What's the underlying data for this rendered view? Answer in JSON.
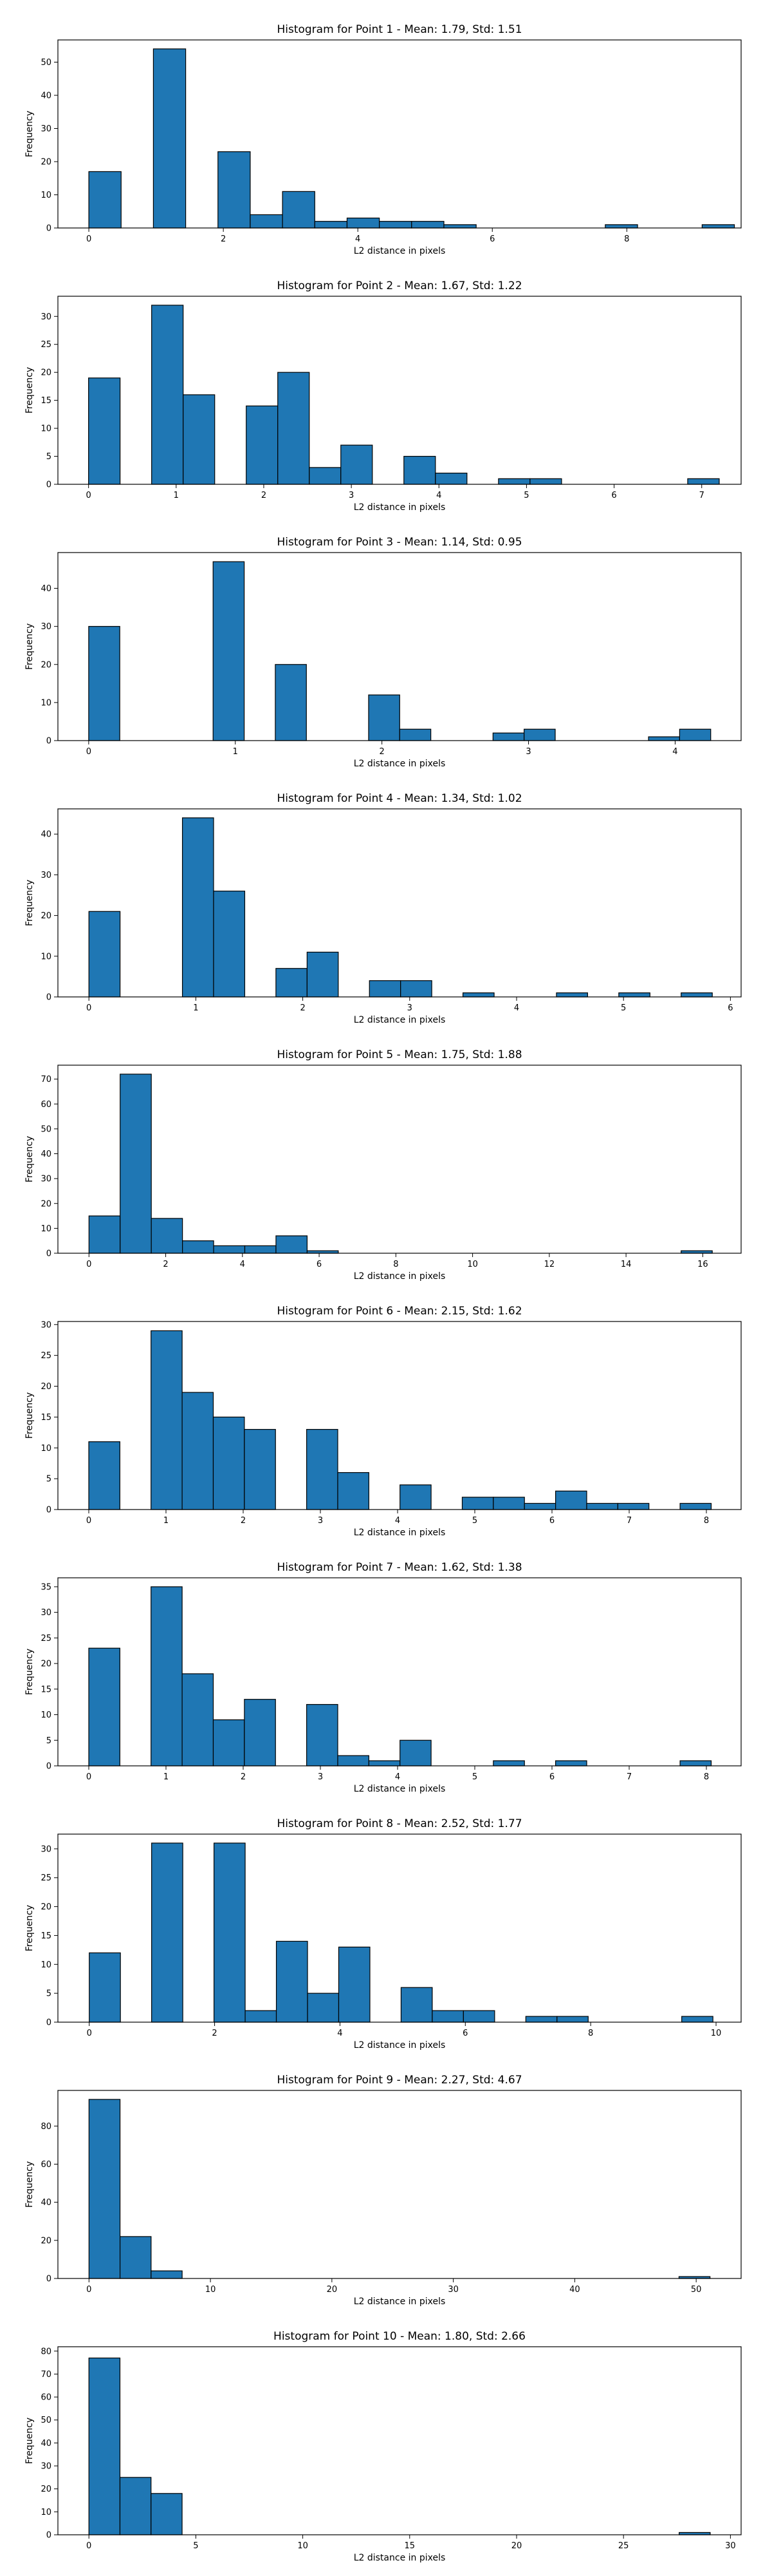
{
  "chart_data": [
    {
      "type": "bar",
      "title": "Histogram for Point 1 - Mean: 1.79, Std: 1.51",
      "xlabel": "L2 distance in pixels",
      "ylabel": "Frequency",
      "xlim": [
        -0.46,
        9.7
      ],
      "ylim": [
        0,
        56.7
      ],
      "xticks": [
        0,
        2,
        4,
        6,
        8
      ],
      "yticks": [
        0,
        10,
        20,
        30,
        40,
        50
      ],
      "bin_edges": [
        0,
        0.48,
        0.96,
        1.44,
        1.92,
        2.4,
        2.88,
        3.36,
        3.84,
        4.32,
        4.8,
        5.28,
        5.76,
        6.24,
        6.72,
        7.2,
        7.68,
        8.16,
        8.64,
        9.12,
        9.6
      ],
      "values": [
        17,
        0,
        54,
        0,
        23,
        4,
        11,
        2,
        3,
        2,
        2,
        1,
        0,
        0,
        0,
        0,
        1,
        0,
        0,
        1
      ]
    },
    {
      "type": "bar",
      "title": "Histogram for Point 2 - Mean: 1.67, Std: 1.22",
      "xlabel": "L2 distance in pixels",
      "ylabel": "Frequency",
      "xlim": [
        -0.35,
        7.45
      ],
      "ylim": [
        0,
        33.6
      ],
      "xticks": [
        0,
        1,
        2,
        3,
        4,
        5,
        6,
        7
      ],
      "yticks": [
        0,
        5,
        10,
        15,
        20,
        25,
        30
      ],
      "bin_edges": [
        0,
        0.36,
        0.72,
        1.08,
        1.44,
        1.8,
        2.16,
        2.52,
        2.88,
        3.24,
        3.6,
        3.96,
        4.32,
        4.68,
        5.04,
        5.4,
        5.76,
        6.12,
        6.48,
        6.84,
        7.2
      ],
      "values": [
        19,
        0,
        32,
        16,
        0,
        14,
        20,
        3,
        7,
        0,
        5,
        2,
        0,
        1,
        1,
        0,
        0,
        0,
        0,
        1
      ]
    },
    {
      "type": "bar",
      "title": "Histogram for Point 3 - Mean: 1.14, Std: 0.95",
      "xlabel": "L2 distance in pixels",
      "ylabel": "Frequency",
      "xlim": [
        -0.21,
        4.45
      ],
      "ylim": [
        0,
        49.4
      ],
      "xticks": [
        0,
        1,
        2,
        3,
        4
      ],
      "yticks": [
        0,
        10,
        20,
        30,
        40
      ],
      "bin_edges": [
        0,
        0.2121,
        0.4243,
        0.6364,
        0.8485,
        1.0607,
        1.2728,
        1.4849,
        1.6971,
        1.9092,
        2.1213,
        2.3335,
        2.5456,
        2.7577,
        2.9698,
        3.182,
        3.3941,
        3.6062,
        3.8184,
        4.0305,
        4.2426
      ],
      "values": [
        30,
        0,
        0,
        0,
        47,
        0,
        20,
        0,
        0,
        12,
        3,
        0,
        0,
        2,
        3,
        0,
        0,
        0,
        1,
        3
      ]
    },
    {
      "type": "bar",
      "title": "Histogram for Point 4 - Mean: 1.34, Std: 1.02",
      "xlabel": "L2 distance in pixels",
      "ylabel": "Frequency",
      "xlim": [
        -0.29,
        6.1
      ],
      "ylim": [
        0,
        46.2
      ],
      "xticks": [
        0,
        1,
        2,
        3,
        4,
        5,
        6
      ],
      "yticks": [
        0,
        10,
        20,
        30,
        40
      ],
      "bin_edges": [
        0,
        0.2915,
        0.583,
        0.8746,
        1.1661,
        1.4576,
        1.7491,
        2.0406,
        2.3322,
        2.6237,
        2.9152,
        3.2067,
        3.4982,
        3.7898,
        4.0813,
        4.3728,
        4.6643,
        4.9558,
        5.2474,
        5.5389,
        5.8304
      ],
      "values": [
        21,
        0,
        0,
        44,
        26,
        0,
        7,
        11,
        0,
        4,
        4,
        0,
        1,
        0,
        0,
        1,
        0,
        1,
        0,
        1
      ]
    },
    {
      "type": "bar",
      "title": "Histogram for Point 5 - Mean: 1.75, Std: 1.88",
      "xlabel": "L2 distance in pixels",
      "ylabel": "Frequency",
      "xlim": [
        -0.81,
        17.0
      ],
      "ylim": [
        0,
        75.6
      ],
      "xticks": [
        0,
        2,
        4,
        6,
        8,
        10,
        12,
        14,
        16
      ],
      "yticks": [
        0,
        10,
        20,
        30,
        40,
        50,
        60,
        70
      ],
      "bin_edges": [
        0,
        0.8124,
        1.6248,
        2.4372,
        3.2496,
        4.062,
        4.8744,
        5.6868,
        6.4992,
        7.3116,
        8.124,
        8.9364,
        9.7488,
        10.5612,
        11.3736,
        12.186,
        12.9984,
        13.8108,
        14.6232,
        15.4356,
        16.248
      ],
      "values": [
        15,
        72,
        14,
        5,
        3,
        3,
        7,
        1,
        0,
        0,
        0,
        0,
        0,
        0,
        0,
        0,
        0,
        0,
        0,
        1
      ]
    },
    {
      "type": "bar",
      "title": "Histogram for Point 6 - Mean: 2.15, Std: 1.62",
      "xlabel": "L2 distance in pixels",
      "ylabel": "Frequency",
      "xlim": [
        -0.4,
        8.45
      ],
      "ylim": [
        0,
        30.5
      ],
      "xticks": [
        0,
        1,
        2,
        3,
        4,
        5,
        6,
        7,
        8
      ],
      "yticks": [
        0,
        5,
        10,
        15,
        20,
        25,
        30
      ],
      "bin_edges": [
        0,
        0.4031,
        0.8062,
        1.2093,
        1.6125,
        2.0156,
        2.4187,
        2.8218,
        3.2249,
        3.628,
        4.0311,
        4.4342,
        4.8374,
        5.2405,
        5.6436,
        6.0467,
        6.4498,
        6.8529,
        7.256,
        7.6592,
        8.0623
      ],
      "values": [
        11,
        0,
        29,
        19,
        15,
        13,
        0,
        13,
        6,
        0,
        4,
        0,
        2,
        2,
        1,
        3,
        1,
        1,
        0,
        1
      ]
    },
    {
      "type": "bar",
      "title": "Histogram for Point 7 - Mean: 1.62, Std: 1.38",
      "xlabel": "L2 distance in pixels",
      "ylabel": "Frequency",
      "xlim": [
        -0.4,
        8.45
      ],
      "ylim": [
        0,
        36.75
      ],
      "xticks": [
        0,
        1,
        2,
        3,
        4,
        5,
        6,
        7,
        8
      ],
      "yticks": [
        0,
        5,
        10,
        15,
        20,
        25,
        30,
        35
      ],
      "bin_edges": [
        0,
        0.4031,
        0.8062,
        1.2093,
        1.6125,
        2.0156,
        2.4187,
        2.8218,
        3.2249,
        3.628,
        4.0311,
        4.4342,
        4.8374,
        5.2405,
        5.6436,
        6.0467,
        6.4498,
        6.8529,
        7.256,
        7.6592,
        8.0623
      ],
      "values": [
        23,
        0,
        35,
        18,
        9,
        13,
        0,
        12,
        2,
        1,
        5,
        0,
        0,
        1,
        0,
        1,
        0,
        0,
        0,
        1
      ]
    },
    {
      "type": "bar",
      "title": "Histogram for Point 8 - Mean: 2.52, Std: 1.77",
      "xlabel": "L2 distance in pixels",
      "ylabel": "Frequency",
      "xlim": [
        -0.5,
        10.4
      ],
      "ylim": [
        0,
        32.55
      ],
      "xticks": [
        0,
        2,
        4,
        6,
        8,
        10
      ],
      "yticks": [
        0,
        5,
        10,
        15,
        20,
        25,
        30
      ],
      "bin_edges": [
        0,
        0.4975,
        0.995,
        1.4925,
        1.99,
        2.4875,
        2.985,
        3.4825,
        3.98,
        4.4775,
        4.975,
        5.4725,
        5.97,
        6.4675,
        6.965,
        7.4625,
        7.96,
        8.4575,
        8.955,
        9.4525,
        9.95
      ],
      "values": [
        12,
        0,
        31,
        0,
        31,
        2,
        14,
        5,
        13,
        0,
        6,
        2,
        2,
        0,
        1,
        1,
        0,
        0,
        0,
        1
      ]
    },
    {
      "type": "bar",
      "title": "Histogram for Point 9 - Mean: 2.27, Std: 4.67",
      "xlabel": "L2 distance in pixels",
      "ylabel": "Frequency",
      "xlim": [
        -2.56,
        53.7
      ],
      "ylim": [
        0,
        98.7
      ],
      "xticks": [
        0,
        10,
        20,
        30,
        40,
        50
      ],
      "yticks": [
        0,
        20,
        40,
        60,
        80
      ],
      "bin_edges": [
        0,
        2.557,
        5.114,
        7.671,
        10.228,
        12.785,
        15.342,
        17.899,
        20.456,
        23.013,
        25.57,
        28.127,
        30.684,
        33.241,
        35.798,
        38.355,
        40.912,
        43.469,
        46.026,
        48.583,
        51.14
      ],
      "values": [
        94,
        22,
        4,
        0,
        0,
        0,
        0,
        0,
        0,
        0,
        0,
        0,
        0,
        0,
        0,
        0,
        0,
        0,
        0,
        1
      ]
    },
    {
      "type": "bar",
      "title": "Histogram for Point 10 - Mean: 1.80, Std: 2.66",
      "xlabel": "L2 distance in pixels",
      "ylabel": "Frequency",
      "xlim": [
        -1.45,
        30.5
      ],
      "ylim": [
        0,
        81.9
      ],
      "xticks": [
        0,
        5,
        10,
        15,
        20,
        25,
        30
      ],
      "yticks": [
        0,
        10,
        20,
        30,
        40,
        50,
        60,
        70,
        80
      ],
      "bin_edges": [
        0,
        1.4527,
        2.9054,
        4.3581,
        5.8108,
        7.2635,
        8.7162,
        10.1689,
        11.6216,
        13.0743,
        14.527,
        15.9797,
        17.4324,
        18.8851,
        20.3378,
        21.7905,
        23.2432,
        24.6959,
        26.1486,
        27.6013,
        29.054
      ],
      "values": [
        77,
        25,
        18,
        0,
        0,
        0,
        0,
        0,
        0,
        0,
        0,
        0,
        0,
        0,
        0,
        0,
        0,
        0,
        0,
        1
      ]
    }
  ]
}
